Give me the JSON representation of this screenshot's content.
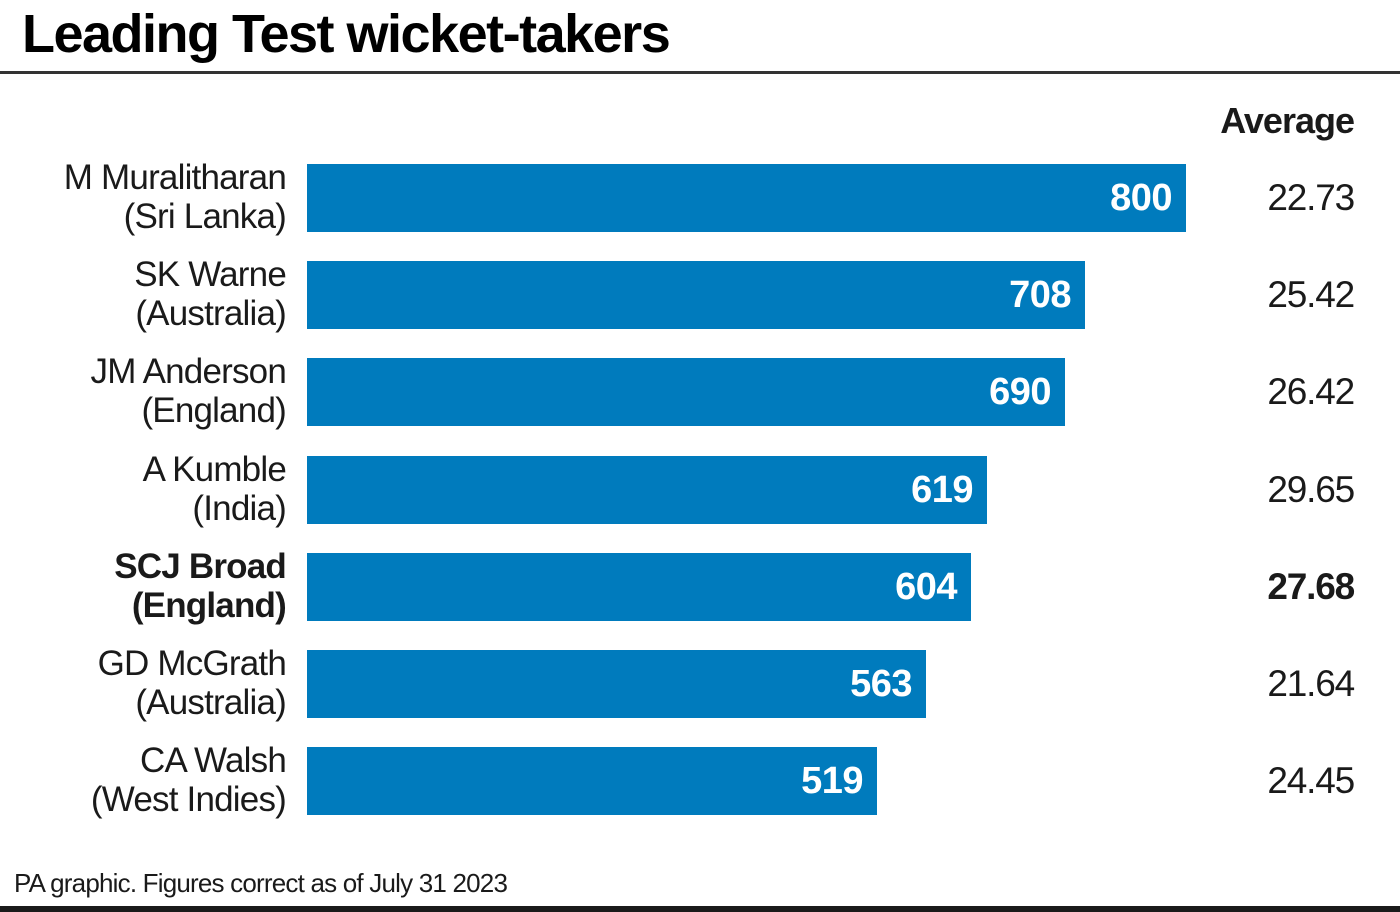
{
  "title": "Leading Test wicket-takers",
  "avg_header": "Average",
  "source": "PA graphic. Figures correct as of July 31 2023",
  "colors": {
    "bar": "#007bbd",
    "text": "#1a1a1a",
    "bar_text": "#ffffff"
  },
  "rows": [
    {
      "name": "M Muralitharan",
      "country": "(Sri Lanka)",
      "wickets": "800",
      "average": "22.73",
      "highlight": false
    },
    {
      "name": "SK Warne",
      "country": "(Australia)",
      "wickets": "708",
      "average": "25.42",
      "highlight": false
    },
    {
      "name": "JM Anderson",
      "country": "(England)",
      "wickets": "690",
      "average": "26.42",
      "highlight": false
    },
    {
      "name": "A Kumble",
      "country": "(India)",
      "wickets": "619",
      "average": "29.65",
      "highlight": false
    },
    {
      "name": "SCJ Broad",
      "country": "(England)",
      "wickets": "604",
      "average": "27.68",
      "highlight": true
    },
    {
      "name": "GD McGrath",
      "country": "(Australia)",
      "wickets": "563",
      "average": "21.64",
      "highlight": false
    },
    {
      "name": "CA Walsh",
      "country": "(West Indies)",
      "wickets": "519",
      "average": "24.45",
      "highlight": false
    }
  ],
  "chart_data": {
    "type": "bar",
    "orientation": "horizontal",
    "title": "Leading Test wicket-takers",
    "categories": [
      "M Muralitharan (Sri Lanka)",
      "SK Warne (Australia)",
      "JM Anderson (England)",
      "A Kumble (India)",
      "SCJ Broad (England)",
      "GD McGrath (Australia)",
      "CA Walsh (West Indies)"
    ],
    "series": [
      {
        "name": "Wickets",
        "values": [
          800,
          708,
          690,
          619,
          604,
          563,
          519
        ]
      },
      {
        "name": "Average",
        "values": [
          22.73,
          25.42,
          26.42,
          29.65,
          27.68,
          21.64,
          24.45
        ]
      }
    ],
    "highlighted_category": "SCJ Broad (England)",
    "xlabel": "",
    "ylabel": "",
    "xlim": [
      0,
      800
    ],
    "grid": false,
    "legend": "none",
    "annotations": [
      "Average",
      "PA graphic. Figures correct as of July 31 2023"
    ]
  }
}
